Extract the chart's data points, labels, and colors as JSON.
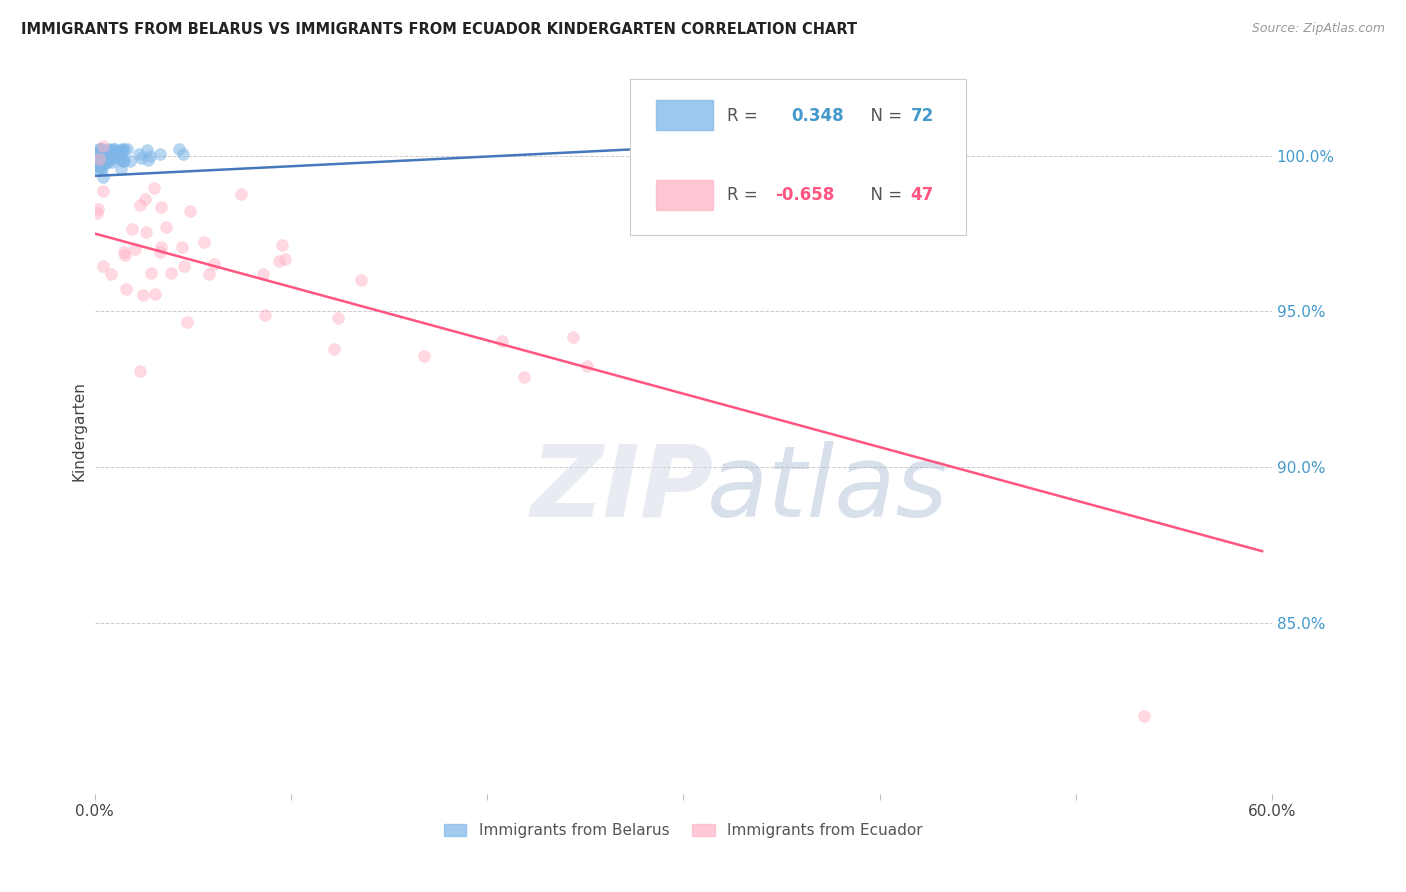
{
  "title": "IMMIGRANTS FROM BELARUS VS IMMIGRANTS FROM ECUADOR KINDERGARTEN CORRELATION CHART",
  "source": "Source: ZipAtlas.com",
  "ylabel": "Kindergarten",
  "ytick_labels": [
    "100.0%",
    "95.0%",
    "90.0%",
    "85.0%"
  ],
  "ytick_values": [
    1.0,
    0.95,
    0.9,
    0.85
  ],
  "xlim": [
    0.0,
    0.6
  ],
  "ylim": [
    0.795,
    1.028
  ],
  "color_belarus": "#7EB6E8",
  "color_ecuador": "#FFB3C6",
  "line_color_belarus": "#4477BB",
  "line_color_ecuador": "#FF5580",
  "watermark_color_zip": "#D8DCE8",
  "watermark_color_atlas": "#AABBD4",
  "background_color": "#FFFFFF",
  "R_belarus": 0.348,
  "N_belarus": 72,
  "R_ecuador": -0.658,
  "N_ecuador": 47,
  "belarus_line_x0": 0.0,
  "belarus_line_x1": 0.305,
  "belarus_line_y0": 0.9935,
  "belarus_line_y1": 1.003,
  "ecuador_line_x0": 0.0,
  "ecuador_line_x1": 0.595,
  "ecuador_line_y0": 0.975,
  "ecuador_line_y1": 0.873
}
